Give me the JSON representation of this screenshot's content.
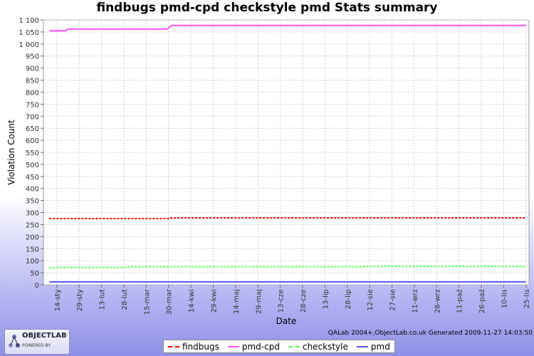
{
  "page": {
    "title": "findbugs pmd-cpd checkstyle pmd  Stats summary",
    "footer": "QALab 2004+,ObjectLab.co.uk Generated 2009-11-27 14:03:50",
    "logo": {
      "name": "OBJECTLAB",
      "tagline": "POWERED BY"
    }
  },
  "chart_data": {
    "type": "line",
    "title": "findbugs pmd-cpd checkstyle pmd  Stats summary",
    "xlabel": "Date",
    "ylabel": "Violation Count",
    "ylim": [
      0,
      1100
    ],
    "xlim": [
      "2009-01-05",
      "2009-11-27"
    ],
    "y_ticks": [
      "0",
      "50",
      "100",
      "150",
      "200",
      "250",
      "300",
      "350",
      "400",
      "450",
      "500",
      "550",
      "600",
      "650",
      "700",
      "750",
      "800",
      "850",
      "900",
      "950",
      "1 000",
      "1 050",
      "1 100"
    ],
    "x_ticks": [
      {
        "date": "2009-01-14",
        "label": "14-sty"
      },
      {
        "date": "2009-01-29",
        "label": "29-sty"
      },
      {
        "date": "2009-02-13",
        "label": "13-lut"
      },
      {
        "date": "2009-02-28",
        "label": "28-lut"
      },
      {
        "date": "2009-03-15",
        "label": "15-mar"
      },
      {
        "date": "2009-03-30",
        "label": "30-mar"
      },
      {
        "date": "2009-04-14",
        "label": "14-kwi"
      },
      {
        "date": "2009-04-29",
        "label": "29-kwi"
      },
      {
        "date": "2009-05-14",
        "label": "14-maj"
      },
      {
        "date": "2009-05-29",
        "label": "29-maj"
      },
      {
        "date": "2009-06-13",
        "label": "13-cze"
      },
      {
        "date": "2009-06-28",
        "label": "28-cze"
      },
      {
        "date": "2009-07-13",
        "label": "13-lip"
      },
      {
        "date": "2009-07-28",
        "label": "28-lip"
      },
      {
        "date": "2009-08-12",
        "label": "12-sie"
      },
      {
        "date": "2009-08-27",
        "label": "27-sie"
      },
      {
        "date": "2009-09-11",
        "label": "11-wrz"
      },
      {
        "date": "2009-09-26",
        "label": "26-wrz"
      },
      {
        "date": "2009-10-11",
        "label": "11-paź"
      },
      {
        "date": "2009-10-26",
        "label": "26-paź"
      },
      {
        "date": "2009-11-10",
        "label": "10-lis"
      },
      {
        "date": "2009-11-25",
        "label": "25-lis"
      }
    ],
    "grid": true,
    "legend_position": "bottom",
    "series": [
      {
        "name": "findbugs",
        "color": "#ff0000",
        "style": "dashed",
        "points": [
          [
            "2009-01-09",
            275
          ],
          [
            "2009-03-31",
            275
          ],
          [
            "2009-04-01",
            278
          ],
          [
            "2009-11-25",
            278
          ]
        ]
      },
      {
        "name": "pmd-cpd",
        "color": "#ff55ff",
        "style": "solid",
        "points": [
          [
            "2009-01-09",
            1055
          ],
          [
            "2009-01-20",
            1055
          ],
          [
            "2009-01-21",
            1062
          ],
          [
            "2009-03-29",
            1062
          ],
          [
            "2009-04-01",
            1077
          ],
          [
            "2009-11-25",
            1077
          ]
        ]
      },
      {
        "name": "checkstyle",
        "color": "#55ff55",
        "style": "dashed",
        "points": [
          [
            "2009-01-09",
            70
          ],
          [
            "2009-01-12",
            72
          ],
          [
            "2009-02-28",
            72
          ],
          [
            "2009-03-05",
            75
          ],
          [
            "2009-08-05",
            75
          ],
          [
            "2009-08-10",
            77
          ],
          [
            "2009-11-20",
            77
          ],
          [
            "2009-11-25",
            75
          ]
        ]
      },
      {
        "name": "pmd",
        "color": "#5555ff",
        "style": "solid",
        "points": [
          [
            "2009-01-09",
            12
          ],
          [
            "2009-11-25",
            12
          ]
        ]
      }
    ]
  }
}
